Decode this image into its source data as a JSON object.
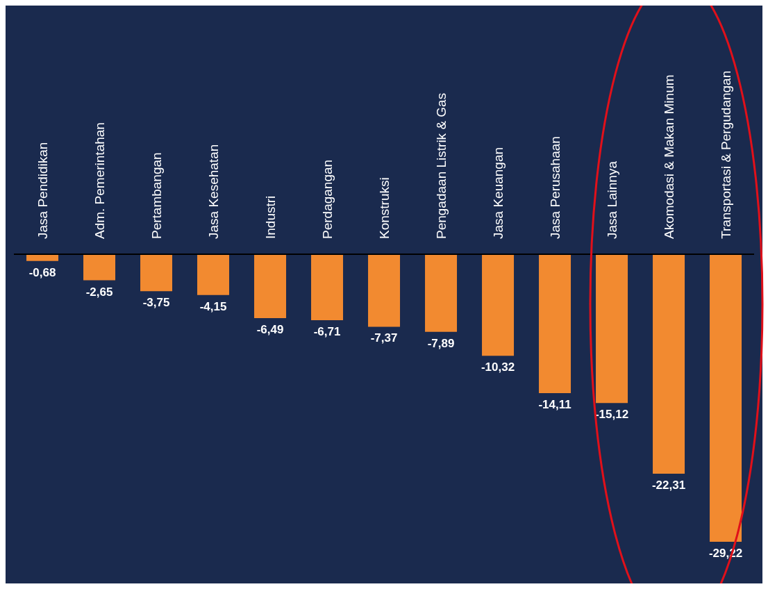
{
  "chart_data": {
    "type": "bar",
    "categories": [
      "Jasa Pendidikan",
      "Adm. Pemerintahan",
      "Pertambangan",
      "Jasa Kesehatan",
      "Industri",
      "Perdagangan",
      "Konstruksi",
      "Pengadaan Listrik & Gas",
      "Jasa Keuangan",
      "Jasa Perusahaan",
      "Jasa Lainnya",
      "Akomodasi & Makan Minum",
      "Transportasi & Pergudangan"
    ],
    "values": [
      -0.68,
      -2.65,
      -3.75,
      -4.15,
      -6.49,
      -6.71,
      -7.37,
      -7.89,
      -10.32,
      -14.11,
      -15.12,
      -22.31,
      -29.22
    ],
    "value_labels": [
      "-0,68",
      "-2,65",
      "-3,75",
      "-4,15",
      "-6,49",
      "-6,71",
      "-7,37",
      "-7,89",
      "-10,32",
      "-14,11",
      "-15,12",
      "-22,31",
      "-29,22"
    ],
    "color": "#f28a30"
  }
}
